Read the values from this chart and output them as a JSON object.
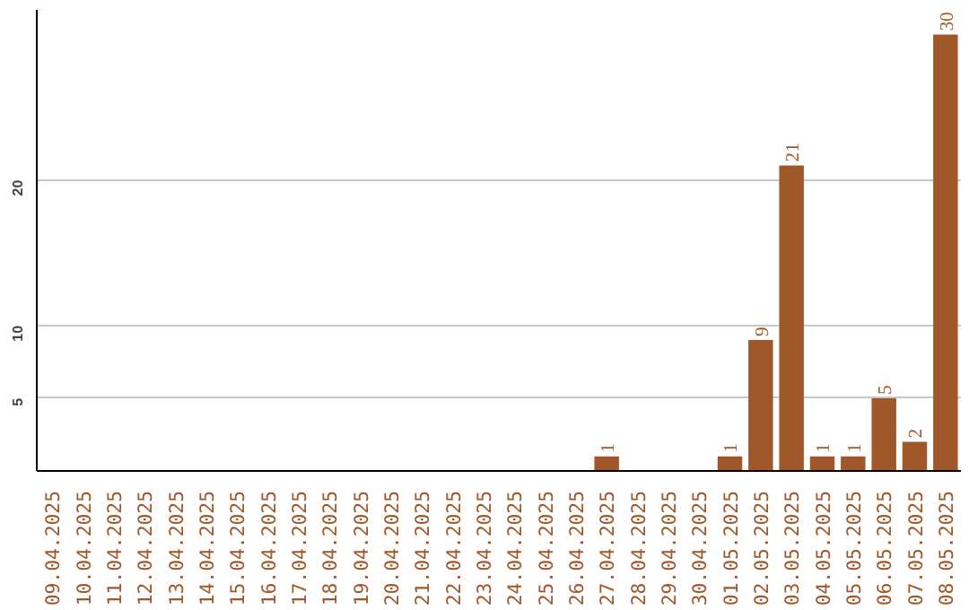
{
  "chart_data": {
    "type": "bar",
    "categories": [
      "09.04.2025",
      "10.04.2025",
      "11.04.2025",
      "12.04.2025",
      "13.04.2025",
      "14.04.2025",
      "15.04.2025",
      "16.04.2025",
      "17.04.2025",
      "18.04.2025",
      "19.04.2025",
      "20.04.2025",
      "21.04.2025",
      "22.04.2025",
      "23.04.2025",
      "24.04.2025",
      "25.04.2025",
      "26.04.2025",
      "27.04.2025",
      "28.04.2025",
      "29.04.2025",
      "30.04.2025",
      "01.05.2025",
      "02.05.2025",
      "03.05.2025",
      "04.05.2025",
      "05.05.2025",
      "06.05.2025",
      "07.05.2025",
      "08.05.2025"
    ],
    "values": [
      0,
      0,
      0,
      0,
      0,
      0,
      0,
      0,
      0,
      0,
      0,
      0,
      0,
      0,
      0,
      0,
      0,
      0,
      1,
      0,
      0,
      0,
      1,
      9,
      21,
      1,
      1,
      5,
      2,
      30
    ],
    "value_labels": [
      null,
      null,
      null,
      null,
      null,
      null,
      null,
      null,
      null,
      null,
      null,
      null,
      null,
      null,
      null,
      null,
      null,
      null,
      "1",
      null,
      null,
      null,
      "1",
      "9",
      "21",
      "1",
      "1",
      "5",
      "2",
      "30"
    ],
    "color": "#a0582a",
    "ylim": [
      0,
      31.7
    ],
    "yticks": [
      5,
      10,
      20
    ],
    "grid": "y"
  }
}
